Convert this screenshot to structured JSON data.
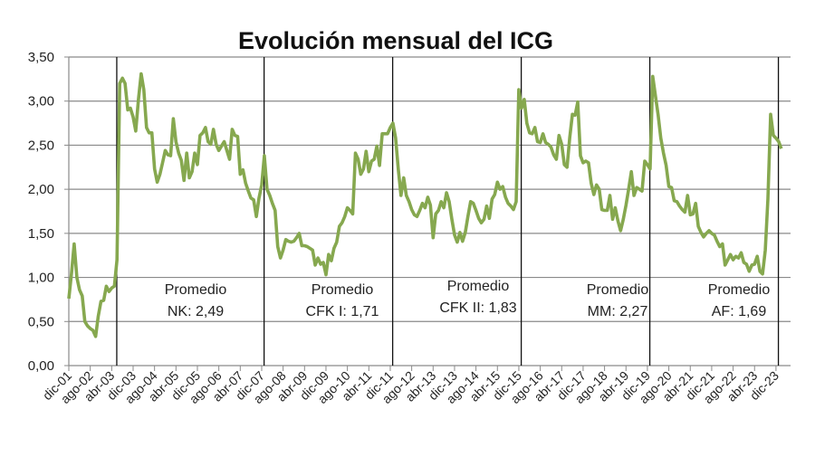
{
  "chart_data": {
    "type": "line",
    "title": "Evolución mensual del ICG",
    "xlabel": "",
    "ylabel": "",
    "x_start": "2001-12",
    "frequency": "monthly",
    "ylim": [
      0,
      3.5
    ],
    "yticks": [
      "0,00",
      "0,50",
      "1,00",
      "1,50",
      "2,00",
      "2,50",
      "3,00",
      "3,50"
    ],
    "ytick_values": [
      0,
      0.5,
      1,
      1.5,
      2,
      2.5,
      3,
      3.5
    ],
    "xtick_labels": [
      "dic-01",
      "ago-02",
      "abr-03",
      "dic-03",
      "ago-04",
      "abr-05",
      "dic-05",
      "ago-06",
      "abr-07",
      "dic-07",
      "ago-08",
      "abr-09",
      "dic-09",
      "ago-10",
      "abr-11",
      "dic-11",
      "ago-12",
      "abr-13",
      "dic-13",
      "ago-14",
      "abr-15",
      "dic-15",
      "ago-16",
      "abr-17",
      "dic-17",
      "ago-18",
      "abr-19",
      "dic-19",
      "ago-20",
      "abr-21",
      "dic-21",
      "ago-22",
      "abr-23",
      "dic-23"
    ],
    "xtick_every_months": 8,
    "grid": "horizontal",
    "line_color": "#86a84f",
    "period_dividers": [
      "2003-05",
      "2007-12",
      "2011-12",
      "2015-12",
      "2019-12",
      "2023-12"
    ],
    "annotations": [
      {
        "line1": "Promedio",
        "line2": "NK: 2,49"
      },
      {
        "line1": "Promedio",
        "line2": "CFK I: 1,71"
      },
      {
        "line1": "Promedio",
        "line2": "CFK II: 1,83"
      },
      {
        "line1": "Promedio",
        "line2": "MM: 2,27"
      },
      {
        "line1": "Promedio",
        "line2": "AF: 1,69"
      }
    ],
    "values": [
      0.76,
      1.05,
      1.38,
      1.0,
      0.86,
      0.79,
      0.5,
      0.45,
      0.42,
      0.4,
      0.33,
      0.56,
      0.73,
      0.74,
      0.9,
      0.84,
      0.88,
      0.9,
      1.2,
      3.2,
      3.26,
      3.2,
      2.9,
      2.92,
      2.82,
      2.66,
      3.02,
      3.31,
      3.13,
      2.7,
      2.64,
      2.64,
      2.23,
      2.08,
      2.17,
      2.3,
      2.44,
      2.39,
      2.38,
      2.8,
      2.54,
      2.41,
      2.33,
      2.1,
      2.41,
      2.13,
      2.2,
      2.41,
      2.28,
      2.61,
      2.64,
      2.7,
      2.54,
      2.51,
      2.68,
      2.51,
      2.44,
      2.49,
      2.54,
      2.44,
      2.34,
      2.68,
      2.61,
      2.6,
      2.17,
      2.22,
      2.07,
      1.98,
      1.9,
      1.88,
      1.69,
      1.9,
      2.05,
      2.38,
      2.0,
      1.93,
      1.84,
      1.76,
      1.35,
      1.22,
      1.31,
      1.43,
      1.41,
      1.4,
      1.41,
      1.45,
      1.5,
      1.36,
      1.36,
      1.35,
      1.33,
      1.31,
      1.14,
      1.22,
      1.15,
      1.17,
      1.03,
      1.26,
      1.19,
      1.33,
      1.4,
      1.58,
      1.62,
      1.69,
      1.79,
      1.76,
      1.72,
      2.41,
      2.34,
      2.17,
      2.23,
      2.43,
      2.2,
      2.32,
      2.34,
      2.49,
      2.27,
      2.63,
      2.63,
      2.63,
      2.7,
      2.75,
      2.58,
      2.23,
      1.93,
      2.13,
      1.93,
      1.86,
      1.77,
      1.71,
      1.69,
      1.76,
      1.84,
      1.79,
      1.91,
      1.82,
      1.45,
      1.72,
      1.76,
      1.86,
      1.79,
      1.96,
      1.86,
      1.66,
      1.48,
      1.4,
      1.51,
      1.41,
      1.51,
      1.69,
      1.86,
      1.84,
      1.76,
      1.67,
      1.62,
      1.66,
      1.81,
      1.67,
      1.89,
      1.94,
      2.08,
      2.0,
      2.03,
      1.91,
      1.84,
      1.81,
      1.77,
      1.86,
      3.13,
      2.92,
      3.02,
      2.75,
      2.64,
      2.63,
      2.7,
      2.54,
      2.53,
      2.63,
      2.53,
      2.51,
      2.48,
      2.39,
      2.34,
      2.61,
      2.51,
      2.28,
      2.25,
      2.58,
      2.85,
      2.84,
      2.99,
      2.38,
      2.3,
      2.32,
      2.3,
      2.07,
      1.94,
      2.05,
      2.0,
      1.77,
      1.76,
      1.76,
      1.93,
      1.66,
      1.79,
      1.64,
      1.53,
      1.66,
      1.82,
      2.0,
      2.2,
      1.93,
      2.02,
      2.0,
      1.98,
      2.32,
      2.28,
      2.23,
      3.28,
      3.06,
      2.84,
      2.58,
      2.41,
      2.27,
      2.03,
      2.02,
      1.87,
      1.86,
      1.81,
      1.77,
      1.74,
      1.93,
      1.71,
      1.72,
      1.84,
      1.58,
      1.51,
      1.46,
      1.5,
      1.53,
      1.5,
      1.48,
      1.41,
      1.35,
      1.38,
      1.14,
      1.2,
      1.26,
      1.2,
      1.24,
      1.22,
      1.28,
      1.17,
      1.15,
      1.07,
      1.14,
      1.15,
      1.24,
      1.07,
      1.04,
      1.31,
      1.89,
      2.85,
      2.61,
      2.58,
      2.54,
      2.46
    ]
  }
}
